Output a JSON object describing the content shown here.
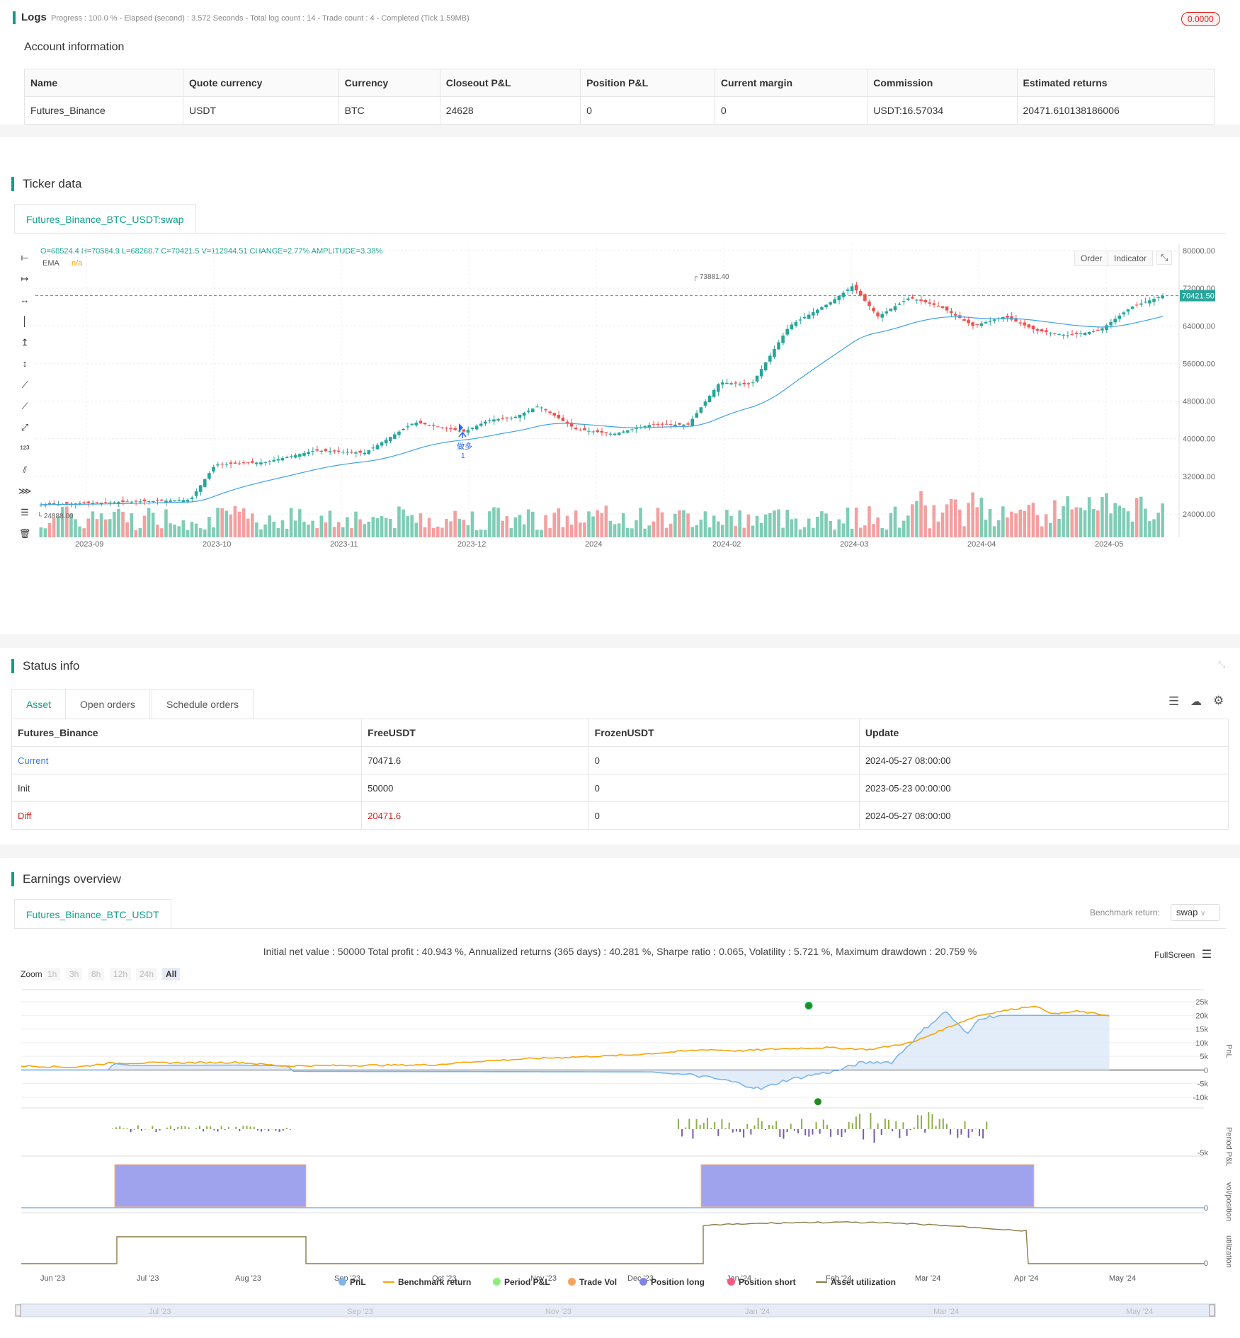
{
  "logs": {
    "title": "Logs",
    "progress": "Progress : 100.0 % - Elapsed (second) : 3.572  Seconds - Total log count : 14 - Trade count : 4 - Completed (Tick 1.59MB)",
    "badge": "0.0000"
  },
  "account": {
    "title": "Account information",
    "headers": [
      "Name",
      "Quote currency",
      "Currency",
      "Closeout P&L",
      "Position P&L",
      "Current margin",
      "Commission",
      "Estimated returns"
    ],
    "row": [
      "Futures_Binance",
      "USDT",
      "BTC",
      "24628",
      "0",
      "0",
      "USDT:16.57034",
      "20471.610138186006"
    ]
  },
  "ticker": {
    "title": "Ticker data",
    "tab": "Futures_Binance_BTC_USDT:swap",
    "ohlc": "O=68524.4 H=70584.9 L=68268.7 C=70421.5 V=112944.51 CHANGE=2.77% AMPLITUDE=3.38%",
    "ema_label": "EMA",
    "ema_value": "n/a",
    "btn_order": "Order",
    "btn_indicator": "Indicator",
    "price_labels": [
      "80000.00",
      "72000.00",
      "64000.00",
      "56000.00",
      "48000.00",
      "40000.00",
      "32000.00",
      "24000.00"
    ],
    "date_labels": [
      "2023-09",
      "2023-10",
      "2023-11",
      "2023-12",
      "2024",
      "2024-02",
      "2024-03",
      "2024-04",
      "2024-05"
    ],
    "current_price": "70421.50",
    "high_marker": "73881.40",
    "low_marker": "24888.00",
    "trade_marker": "做多",
    "trade_count": "1"
  },
  "status": {
    "title": "Status info",
    "tabs": [
      "Asset",
      "Open orders",
      "Schedule orders"
    ],
    "headers": [
      "Futures_Binance",
      "FreeUSDT",
      "FrozenUSDT",
      "Update"
    ],
    "rows": [
      [
        "Current",
        "70471.6",
        "0",
        "2024-05-27 08:00:00"
      ],
      [
        "Init",
        "50000",
        "0",
        "2023-05-23 00:00:00"
      ],
      [
        "Diff",
        "20471.6",
        "0",
        "2024-05-27 08:00:00"
      ]
    ],
    "colors": {
      "current": "#3a7bd5",
      "diff": "#e02020"
    }
  },
  "earnings": {
    "title": "Earnings overview",
    "tab": "Futures_Binance_BTC_USDT",
    "benchmark_label": "Benchmark return:",
    "benchmark_value": "swap",
    "summary": "Initial net value : 50000 Total profit : 40.943 %, Annualized returns (365 days) : 40.281 %, Sharpe ratio : 0.065, Volatility : 5.721 %, Maximum drawdown : 20.759 %",
    "fullscreen": "FullScreen",
    "zoom_label": "Zoom",
    "zoom_buttons": [
      "1h",
      "3h",
      "8h",
      "12h",
      "24h",
      "All"
    ],
    "pnl_axis": [
      "25k",
      "20k",
      "15k",
      "10k",
      "5k",
      "0",
      "-5k",
      "-10k"
    ],
    "period_axis": [
      "-5k"
    ],
    "vol_axis": [
      "0"
    ],
    "util_axis": [
      "0"
    ],
    "panel_labels": [
      "PnL",
      "Period P&L",
      "vol/position",
      "utilization"
    ],
    "x_labels": [
      "Jun '23",
      "Jul '23",
      "Aug '23",
      "Sep '23",
      "Oct '23",
      "Nov '23",
      "Dec '23",
      "Jan '24",
      "Feb '24",
      "Mar '24",
      "Apr '24",
      "May '24"
    ],
    "nav_labels": [
      "Jul '23",
      "Sep '23",
      "Nov '23",
      "Jan '24",
      "Mar '24",
      "May '24"
    ],
    "legend": [
      "PnL",
      "Benchmark return",
      "Period P&L",
      "Trade Vol",
      "Position long",
      "Position short",
      "Asset utilization"
    ],
    "legend_colors": [
      "#7cb5ec",
      "#f7a30b",
      "#90ed7d",
      "#f7a35c",
      "#8085e9",
      "#f15c80",
      "#8d7b45"
    ]
  }
}
